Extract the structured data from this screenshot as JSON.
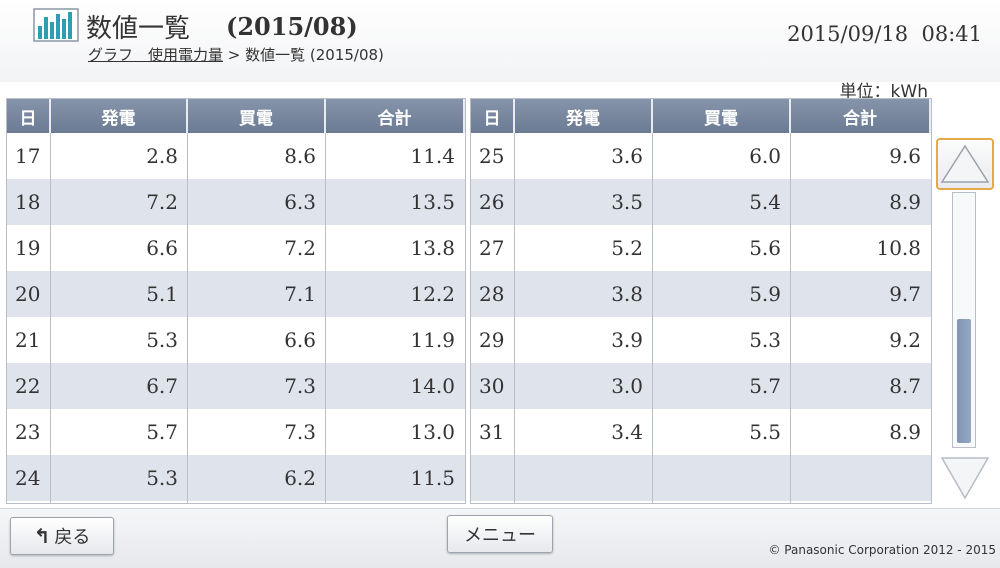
{
  "header": {
    "title": "数値一覧",
    "period": "(2015/08)",
    "breadcrumb_link": "グラフ　使用電力量",
    "breadcrumb_rest": " > 数値一覧 (2015/08)",
    "datetime": "2015/09/18  08:41",
    "app_icon": "bar-chart-icon"
  },
  "unit_label": "単位：kWh",
  "columns": {
    "day": "日",
    "generation": "発電",
    "purchase": "買電",
    "total": "合計"
  },
  "left_table": [
    {
      "day": "17",
      "generation": "2.8",
      "purchase": "8.6",
      "total": "11.4"
    },
    {
      "day": "18",
      "generation": "7.2",
      "purchase": "6.3",
      "total": "13.5"
    },
    {
      "day": "19",
      "generation": "6.6",
      "purchase": "7.2",
      "total": "13.8"
    },
    {
      "day": "20",
      "generation": "5.1",
      "purchase": "7.1",
      "total": "12.2"
    },
    {
      "day": "21",
      "generation": "5.3",
      "purchase": "6.6",
      "total": "11.9"
    },
    {
      "day": "22",
      "generation": "6.7",
      "purchase": "7.3",
      "total": "14.0"
    },
    {
      "day": "23",
      "generation": "5.7",
      "purchase": "7.3",
      "total": "13.0"
    },
    {
      "day": "24",
      "generation": "5.3",
      "purchase": "6.2",
      "total": "11.5"
    }
  ],
  "right_table": [
    {
      "day": "25",
      "generation": "3.6",
      "purchase": "6.0",
      "total": "9.6"
    },
    {
      "day": "26",
      "generation": "3.5",
      "purchase": "5.4",
      "total": "8.9"
    },
    {
      "day": "27",
      "generation": "5.2",
      "purchase": "5.6",
      "total": "10.8"
    },
    {
      "day": "28",
      "generation": "3.8",
      "purchase": "5.9",
      "total": "9.7"
    },
    {
      "day": "29",
      "generation": "3.9",
      "purchase": "5.3",
      "total": "9.2"
    },
    {
      "day": "30",
      "generation": "3.0",
      "purchase": "5.7",
      "total": "8.7"
    },
    {
      "day": "31",
      "generation": "3.4",
      "purchase": "5.5",
      "total": "8.9"
    },
    {
      "day": "",
      "generation": "",
      "purchase": "",
      "total": ""
    }
  ],
  "scrollbar": {
    "up_icon": "chevron-up-icon",
    "down_icon": "chevron-down-icon",
    "position_fraction": 1.0
  },
  "footer": {
    "back_label": "戻る",
    "back_icon": "return-arrow-icon",
    "menu_label": "メニュー",
    "copyright": "© Panasonic Corporation 2012 - 2015"
  },
  "colors": {
    "header_bg": "#6b7b93",
    "alt_row": "#dfe4ec",
    "scroll_focus": "#e6a94a"
  }
}
